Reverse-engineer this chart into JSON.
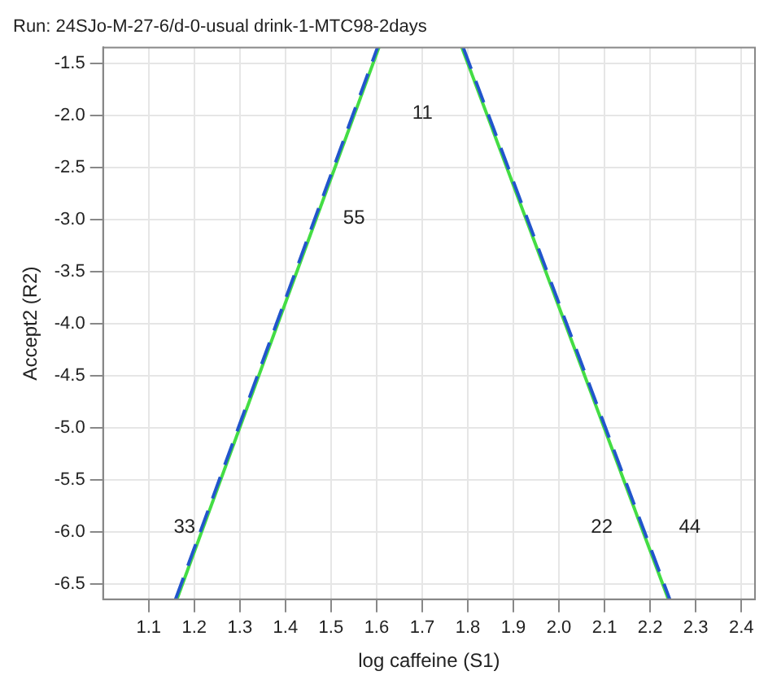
{
  "chart_data": {
    "type": "line",
    "title": "Run: 24SJo-M-27-6/d-0-usual drink-1-MTC98-2days",
    "xlabel": "log caffeine (S1)",
    "ylabel": "Accept2 (R2)",
    "series": [
      {
        "color": "#2255cc",
        "line_style": "dashed",
        "x": [
          1.159,
          1.602
        ],
        "values": [
          -6.65,
          -1.35
        ]
      },
      {
        "color": "#2255cc",
        "line_style": "dashed",
        "x": [
          1.79,
          2.243
        ],
        "values": [
          -1.35,
          -6.65
        ]
      },
      {
        "color": "#44dd44",
        "line_style": "solid",
        "x": [
          1.162,
          1.605
        ],
        "values": [
          -6.65,
          -1.35
        ]
      },
      {
        "color": "#44dd44",
        "line_style": "solid",
        "x": [
          1.787,
          2.24
        ],
        "values": [
          -1.35,
          -6.65
        ]
      }
    ],
    "annotations": [
      "11",
      "55",
      "33",
      "22",
      "44"
    ],
    "xlim": [
      1.0,
      2.43
    ],
    "xticks": [
      1.1,
      1.2,
      1.3,
      1.4,
      1.5,
      1.6,
      1.7,
      1.8,
      1.9,
      {
        "value": 2,
        "label": "2.0"
      },
      2.1,
      2.2,
      2.3,
      2.4
    ],
    "ylim": [
      -6.65,
      -1.35
    ],
    "yticks": [
      -1.5,
      {
        "value": -2,
        "label": "-2.0"
      },
      -2.5,
      {
        "value": -3,
        "label": "-3.0"
      },
      -3.5,
      {
        "value": -4,
        "label": "-4.0"
      },
      -4.5,
      {
        "value": -5,
        "label": "-5.0"
      },
      -5.5,
      {
        "value": -6,
        "label": "-6.0"
      },
      -6.5
    ],
    "grid": true,
    "legend": false,
    "marker": "none"
  }
}
